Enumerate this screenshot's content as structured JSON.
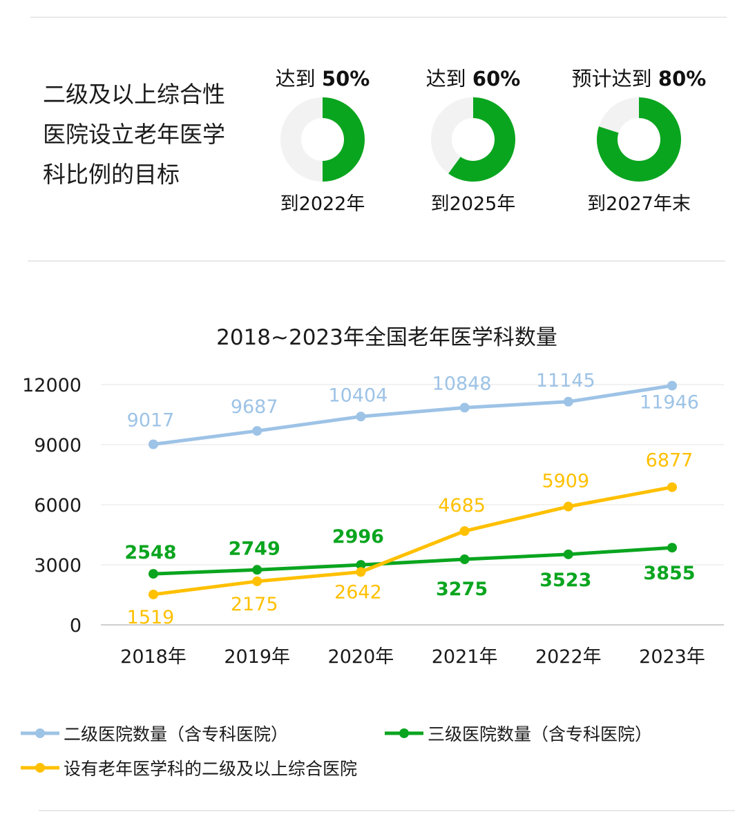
{
  "target_section": {
    "title_lines": [
      "二级及以上综合性",
      "医院设立老年医学",
      "科比例的目标"
    ],
    "targets": [
      {
        "prefix": "达到 ",
        "value_label": "50%",
        "percent": 50,
        "deadline": "到2022年"
      },
      {
        "prefix": "达到 ",
        "value_label": "60%",
        "percent": 60,
        "deadline": "到2025年"
      },
      {
        "prefix": "预计达到 ",
        "value_label": "80%",
        "percent": 80,
        "deadline": "到2027年末"
      }
    ],
    "colors": {
      "fill": "#0aa51f",
      "track": "#f2f2f2"
    }
  },
  "chart_data": {
    "type": "line",
    "title": "2018~2023年全国老年医学科数量",
    "categories": [
      "2018年",
      "2019年",
      "2020年",
      "2021年",
      "2022年",
      "2023年"
    ],
    "ylim": [
      0,
      12000
    ],
    "yticks": [
      "0",
      "3000",
      "6000",
      "9000",
      "12000"
    ],
    "grid": true,
    "legend_position": "bottom",
    "series": [
      {
        "name": "二级医院数量（含专科医院）",
        "color": "#9dc3e6",
        "values": [
          9017,
          9687,
          10404,
          10848,
          11145,
          11946
        ]
      },
      {
        "name": "三级医院数量（含专科医院）",
        "color": "#0aa51f",
        "values": [
          2548,
          2749,
          2996,
          3275,
          3523,
          3855
        ]
      },
      {
        "name": "设有老年医学科的二级及以上综合医院",
        "color": "#ffc000",
        "values": [
          1519,
          2175,
          2642,
          4685,
          5909,
          6877
        ]
      }
    ]
  }
}
